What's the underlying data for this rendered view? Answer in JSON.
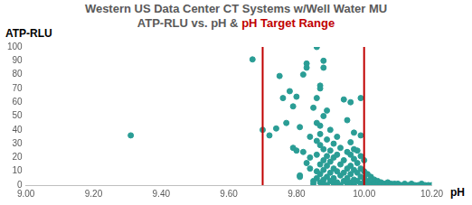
{
  "chart_data": {
    "type": "scatter",
    "title": "Western US Data Center CT Systems w/Well Water MU",
    "subtitle": "ATP-RLU vs. pH &",
    "x_label": "pH",
    "y_label": "ATP-RLU",
    "color": "#2a9d95",
    "marker": "circle",
    "grid": false,
    "target_range": {
      "label": "pH Target Range",
      "values": [
        9.7,
        10.0
      ],
      "color": "#c00000"
    },
    "xlim": [
      9.0,
      10.2
    ],
    "xticks": [
      {
        "value": 9.0,
        "label": "9.00"
      },
      {
        "value": 9.2,
        "label": "9.20"
      },
      {
        "value": 9.4,
        "label": "9.40"
      },
      {
        "value": 9.6,
        "label": "9.60"
      },
      {
        "value": 9.8,
        "label": "9.80"
      },
      {
        "value": 10.0,
        "label": "10.00"
      },
      {
        "value": 10.2,
        "label": "10.20"
      }
    ],
    "ylim": [
      0,
      100
    ],
    "yticks": [
      0,
      10,
      20,
      30,
      40,
      50,
      60,
      70,
      80,
      90,
      100
    ],
    "x": [
      9.31,
      9.67,
      9.7,
      9.72,
      9.74,
      9.75,
      9.76,
      9.77,
      9.78,
      9.79,
      9.79,
      9.8,
      9.8,
      9.81,
      9.81,
      9.81,
      9.82,
      9.82,
      9.83,
      9.83,
      9.83,
      9.84,
      9.84,
      9.84,
      9.85,
      9.85,
      9.85,
      9.86,
      9.86,
      9.86,
      9.86,
      9.86,
      9.86,
      9.86,
      9.87,
      9.87,
      9.87,
      9.87,
      9.87,
      9.87,
      9.87,
      9.87,
      9.88,
      9.88,
      9.88,
      9.88,
      9.88,
      9.88,
      9.88,
      9.88,
      9.89,
      9.89,
      9.89,
      9.89,
      9.89,
      9.89,
      9.9,
      9.9,
      9.9,
      9.9,
      9.9,
      9.91,
      9.91,
      9.91,
      9.91,
      9.91,
      9.92,
      9.92,
      9.92,
      9.92,
      9.93,
      9.93,
      9.93,
      9.93,
      9.94,
      9.94,
      9.94,
      9.94,
      9.95,
      9.95,
      9.95,
      9.95,
      9.95,
      9.96,
      9.96,
      9.96,
      9.96,
      9.96,
      9.96,
      9.97,
      9.97,
      9.97,
      9.97,
      9.97,
      9.97,
      9.98,
      9.98,
      9.98,
      9.98,
      9.99,
      9.99,
      9.99,
      9.99,
      9.99,
      9.99,
      10.0,
      10.0,
      10.0,
      10.0,
      10.0,
      10.01,
      10.01,
      10.01,
      10.02,
      10.02,
      10.02,
      10.03,
      10.03,
      10.04,
      10.04,
      10.05,
      10.05,
      10.06,
      10.06,
      10.07,
      10.07,
      10.08,
      10.08,
      10.09,
      10.09,
      10.1,
      10.1,
      10.11,
      10.12,
      10.12,
      10.13,
      10.14,
      10.15,
      10.16,
      10.17,
      10.18,
      10.19,
      10.2
    ],
    "values": [
      36,
      91,
      40,
      36,
      41,
      79,
      63,
      45,
      68,
      57,
      27,
      25,
      64,
      42,
      7,
      6,
      24,
      80,
      88,
      85,
      16,
      35,
      20,
      12,
      56,
      3,
      1,
      100,
      63,
      45,
      32,
      22,
      10,
      5,
      72,
      70,
      43,
      37,
      29,
      15,
      8,
      2,
      90,
      85,
      50,
      26,
      18,
      11,
      4,
      1,
      54,
      33,
      21,
      14,
      6,
      0,
      40,
      25,
      17,
      9,
      3,
      30,
      20,
      12,
      5,
      1,
      35,
      22,
      10,
      2,
      27,
      15,
      7,
      0,
      62,
      18,
      9,
      3,
      47,
      24,
      12,
      5,
      1,
      60,
      31,
      22,
      14,
      8,
      2,
      38,
      26,
      19,
      11,
      4,
      0,
      25,
      16,
      9,
      3,
      63,
      36,
      21,
      12,
      6,
      1,
      18,
      10,
      5,
      2,
      0,
      8,
      3,
      1,
      6,
      2,
      0,
      4,
      1,
      3,
      0,
      2,
      1,
      1,
      0,
      2,
      0,
      1,
      0,
      1,
      0,
      0,
      1,
      0,
      1,
      0,
      0,
      1,
      0,
      0,
      1,
      0,
      0,
      0
    ]
  }
}
